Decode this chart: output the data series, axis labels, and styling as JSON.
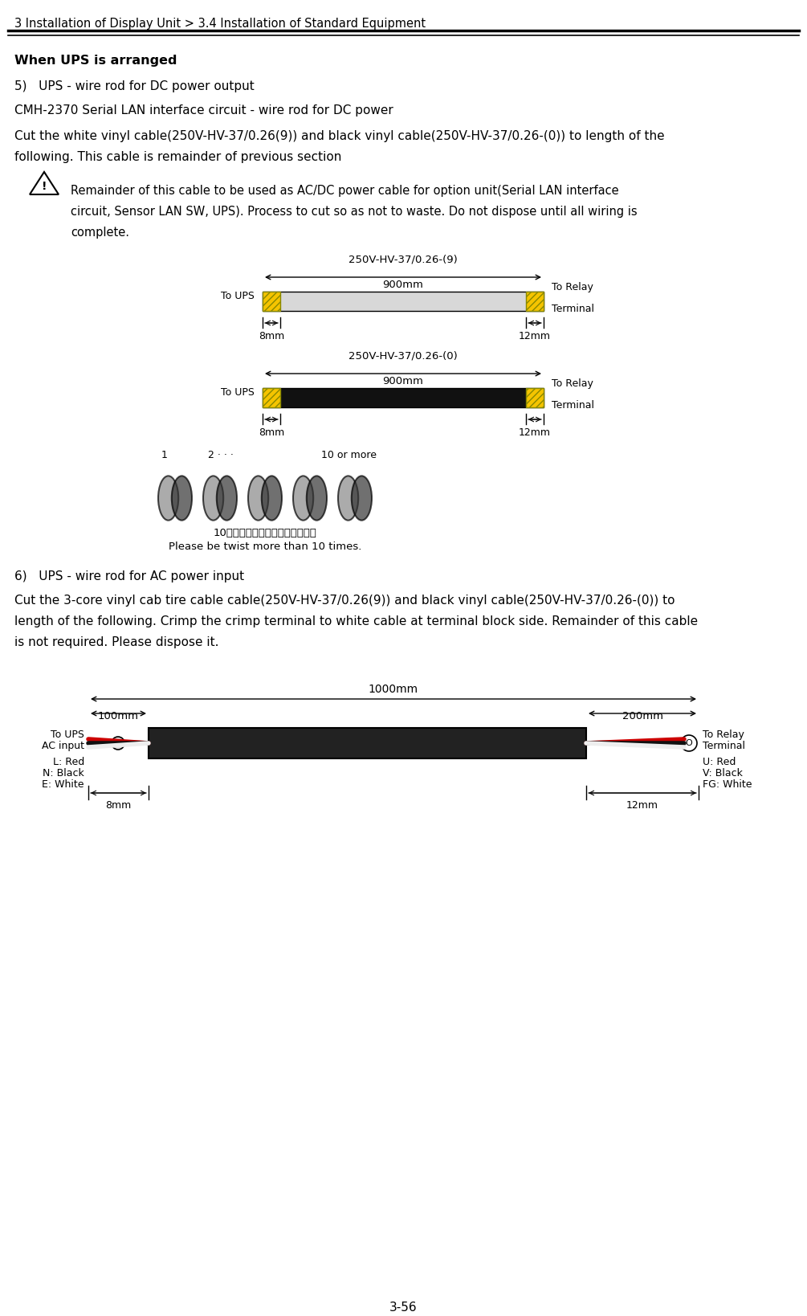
{
  "title_text": "3 Installation of Display Unit > 3.4 Installation of Standard Equipment",
  "header_bold": "When UPS is arranged",
  "sec5_title": "5)   UPS - wire rod for DC power output",
  "sec5_sub": "CMH-2370 Serial LAN interface circuit - wire rod for DC power",
  "sec5_body": "Cut the white vinyl cable(250V-HV-37/0.26(9)) and black vinyl cable(250V-HV-37/0.26-(0)) to length of the following. This cable is remainder of previous section",
  "warning_text": "Remainder of this cable to be used as AC/DC power cable for option unit(Serial LAN interface circuit, Sensor LAN SW, UPS). Process to cut so as not to waste. Do not dispose until all wiring is complete.",
  "cable1_label": "250V-HV-37/0.26-(9)",
  "cable1_length": "900mm",
  "cable1_left_label": "To UPS",
  "cable1_right_label": "To Relay\nTerminal",
  "cable1_left_dim": "8mm",
  "cable1_right_dim": "12mm",
  "cable2_label": "250V-HV-37/0.26-(0)",
  "cable2_length": "900mm",
  "cable2_left_label": "To UPS",
  "cable2_right_label": "To Relay\nTerminal",
  "cable2_left_dim": "8mm",
  "cable2_right_dim": "12mm",
  "twist_note_ja": "10回以上絞り合わせてください。",
  "twist_note_en": "Please be twist more than 10 times.",
  "sec6_title": "6)   UPS - wire rod for AC power input",
  "sec6_body1": "Cut the 3-core vinyl cab tire cable cable(250V-HV-37/0.26(9)) and black vinyl cable(250V-HV-37/0.26-(0)) to",
  "sec6_body2": "length of the following. Crimp the crimp terminal to white cable at terminal block side. Remainder of this cable",
  "sec6_body3": "is not required. Please dispose it.",
  "cable3_total": "1000mm",
  "cable3_left": "100mm",
  "cable3_right": "200mm",
  "cable3_left_label": "To UPS\nAC input",
  "cable3_right_label": "To Relay\nTerminal",
  "cable3_L": "L: Red",
  "cable3_N": "N: Black",
  "cable3_E": "E: White",
  "cable3_U": "U: Red",
  "cable3_V": "V: Black",
  "cable3_FG": "FG: White",
  "cable3_left_dim": "8mm",
  "cable3_right_dim": "12mm",
  "page_num": "3-56",
  "bg_color": "#ffffff",
  "text_color": "#000000",
  "cable_white_color": "#e8e8e8",
  "cable_black_color": "#1a1a1a",
  "cable_yellow_color": "#f5c400",
  "cable_red_color": "#cc0000",
  "dim_color": "#4472c4"
}
